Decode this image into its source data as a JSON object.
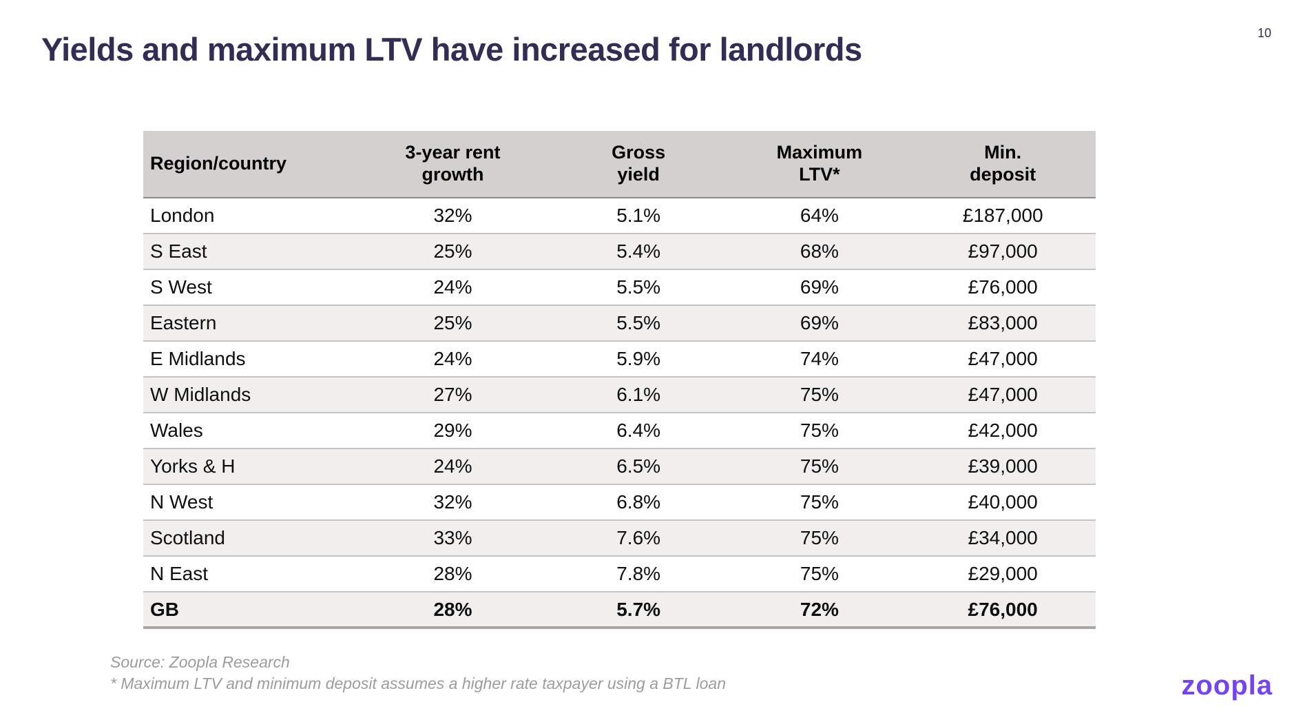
{
  "page": {
    "number": "10"
  },
  "title": "Yields and maximum LTV have increased for landlords",
  "chart_data": {
    "type": "table",
    "title": "Yields and maximum LTV have increased for landlords",
    "columns": [
      "Region/country",
      "3-year rent\ngrowth",
      "Gross\nyield",
      "Maximum\nLTV*",
      "Min.\ndeposit"
    ],
    "rows": [
      {
        "cells": [
          "London",
          "32%",
          "5.1%",
          "64%",
          "£187,000"
        ],
        "is_total": false
      },
      {
        "cells": [
          "S East",
          "25%",
          "5.4%",
          "68%",
          "£97,000"
        ],
        "is_total": false
      },
      {
        "cells": [
          "S West",
          "24%",
          "5.5%",
          "69%",
          "£76,000"
        ],
        "is_total": false
      },
      {
        "cells": [
          "Eastern",
          "25%",
          "5.5%",
          "69%",
          "£83,000"
        ],
        "is_total": false
      },
      {
        "cells": [
          "E Midlands",
          "24%",
          "5.9%",
          "74%",
          "£47,000"
        ],
        "is_total": false
      },
      {
        "cells": [
          "W Midlands",
          "27%",
          "6.1%",
          "75%",
          "£47,000"
        ],
        "is_total": false
      },
      {
        "cells": [
          "Wales",
          "29%",
          "6.4%",
          "75%",
          "£42,000"
        ],
        "is_total": false
      },
      {
        "cells": [
          "Yorks & H",
          "24%",
          "6.5%",
          "75%",
          "£39,000"
        ],
        "is_total": false
      },
      {
        "cells": [
          "N West",
          "32%",
          "6.8%",
          "75%",
          "£40,000"
        ],
        "is_total": false
      },
      {
        "cells": [
          "Scotland",
          "33%",
          "7.6%",
          "75%",
          "£34,000"
        ],
        "is_total": false
      },
      {
        "cells": [
          "N East",
          "28%",
          "7.8%",
          "75%",
          "£29,000"
        ],
        "is_total": false
      },
      {
        "cells": [
          "GB",
          "28%",
          "5.7%",
          "72%",
          "£76,000"
        ],
        "is_total": true
      }
    ],
    "layout": {
      "header_bg": "#d3d1cf",
      "alt_row_bg": "#f0efee",
      "grid": "horizontal-rules"
    }
  },
  "footer": {
    "source_line": "Source:  Zoopla Research",
    "note_line": "* Maximum LTV and minimum deposit assumes a higher rate taxpayer using a BTL loan"
  },
  "logo_text": "zoopla",
  "colors": {
    "title_color": "#332c54",
    "accent_purple": "#7544f1",
    "header_bg": "#d3d1cf",
    "alt_row_bg": "#f0efee"
  }
}
